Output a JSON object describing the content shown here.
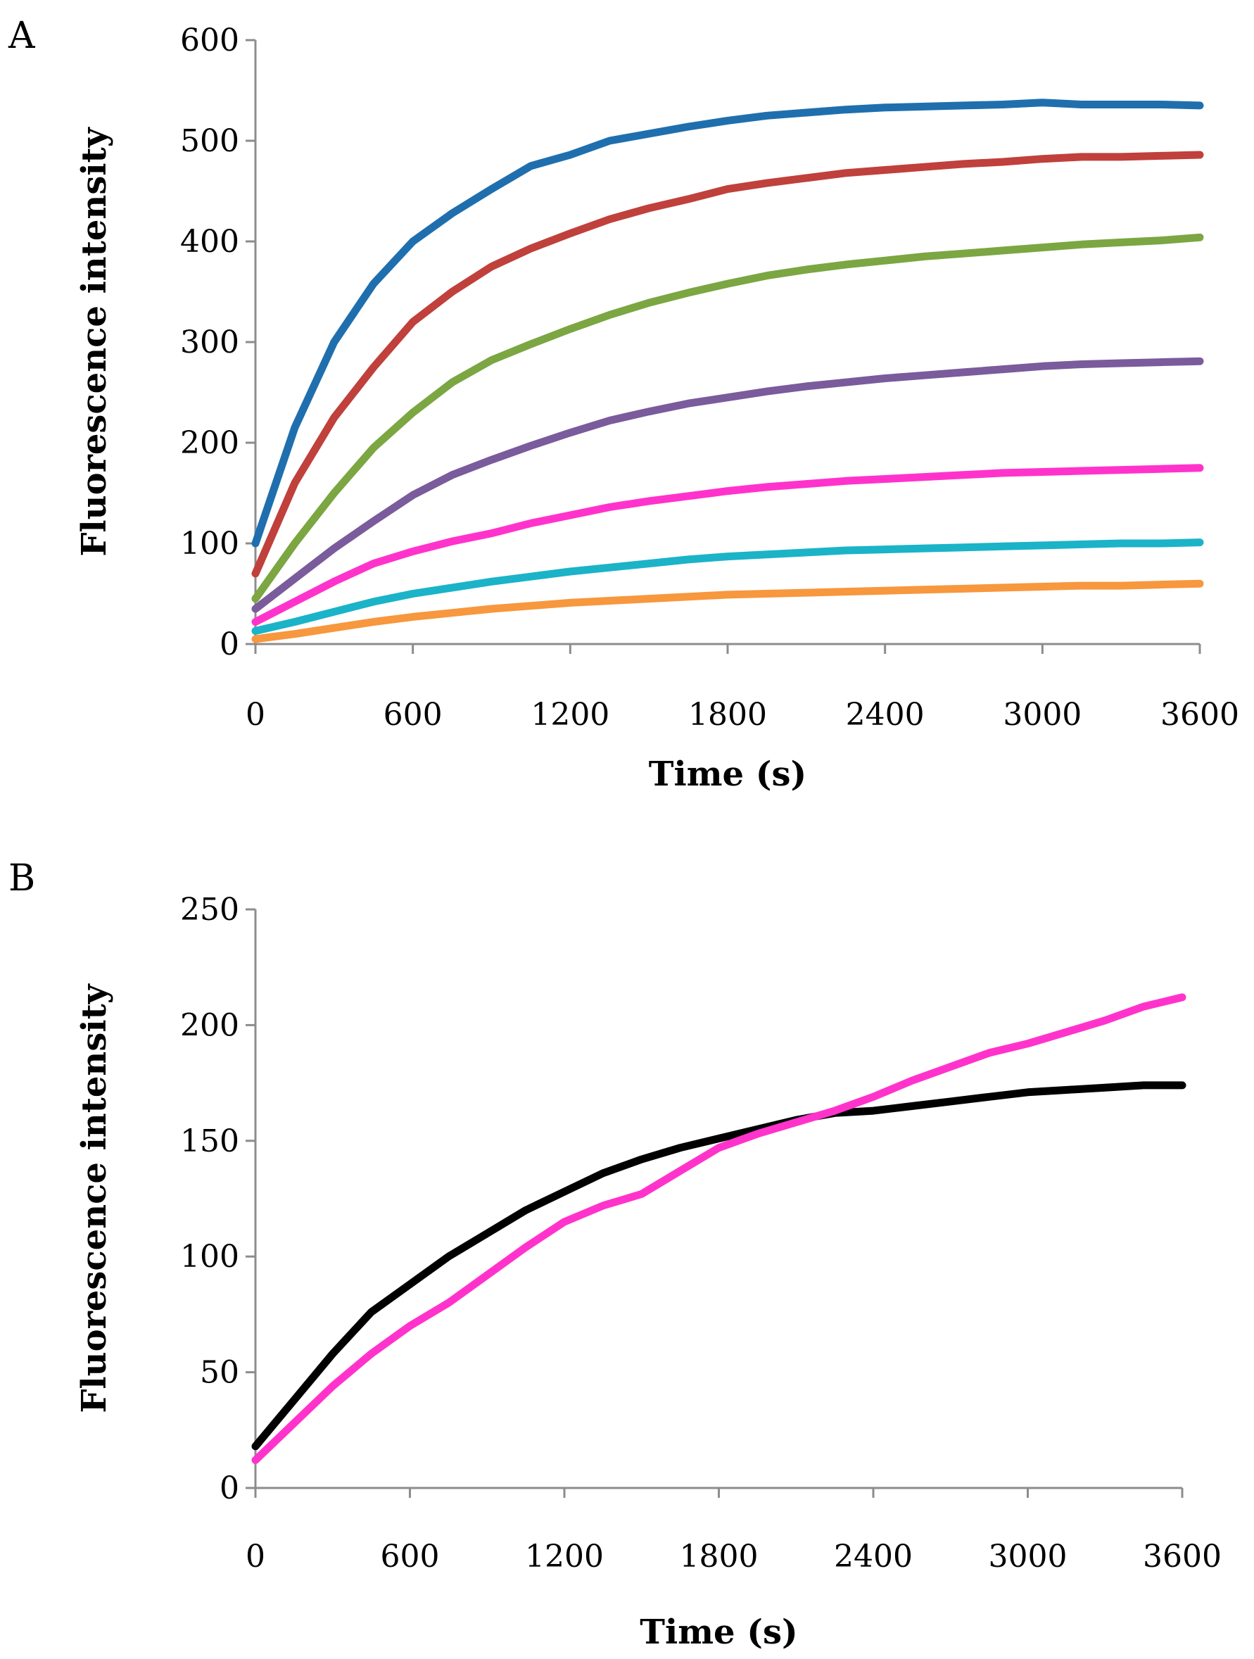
{
  "chart_data": [
    {
      "type": "line",
      "panel_label": "A",
      "xlabel": "Time (s)",
      "ylabel": "Fluorescence intensity",
      "xlim": [
        0,
        3600
      ],
      "ylim": [
        0,
        600
      ],
      "x_ticks": [
        0,
        600,
        1200,
        1800,
        2400,
        3000,
        3600
      ],
      "x_tick_labels": [
        "0",
        "600",
        "1200",
        "1800",
        "2400",
        "3000",
        "3600"
      ],
      "y_ticks": [
        0,
        100,
        200,
        300,
        400,
        500,
        600
      ],
      "y_tick_labels": [
        "0",
        "100",
        "200",
        "300",
        "400",
        "500",
        "600"
      ],
      "grid": false,
      "legend": "none",
      "x": [
        0,
        150,
        300,
        450,
        600,
        750,
        900,
        1050,
        1200,
        1350,
        1500,
        1650,
        1800,
        1950,
        2100,
        2250,
        2400,
        2550,
        2700,
        2850,
        3000,
        3150,
        3300,
        3450,
        3600
      ],
      "series": [
        {
          "name": "series-1",
          "color": "#1F6FAE",
          "values": [
            100,
            215,
            300,
            358,
            400,
            428,
            452,
            475,
            486,
            500,
            507,
            514,
            520,
            525,
            528,
            531,
            533,
            534,
            535,
            536,
            538,
            536,
            536,
            536,
            535
          ]
        },
        {
          "name": "series-2",
          "color": "#C0403C",
          "values": [
            70,
            160,
            225,
            275,
            320,
            350,
            375,
            393,
            408,
            422,
            433,
            442,
            452,
            458,
            463,
            468,
            471,
            474,
            477,
            479,
            482,
            484,
            484,
            485,
            486
          ]
        },
        {
          "name": "series-3",
          "color": "#7BA642",
          "values": [
            45,
            100,
            150,
            195,
            230,
            260,
            282,
            298,
            313,
            327,
            339,
            349,
            358,
            366,
            372,
            377,
            381,
            385,
            388,
            391,
            394,
            397,
            399,
            401,
            404
          ]
        },
        {
          "name": "series-4",
          "color": "#7A5B9C",
          "values": [
            35,
            65,
            95,
            122,
            148,
            168,
            183,
            197,
            210,
            222,
            231,
            239,
            245,
            251,
            256,
            260,
            264,
            267,
            270,
            273,
            276,
            278,
            279,
            280,
            281
          ]
        },
        {
          "name": "series-5",
          "color": "#FF33CC",
          "values": [
            22,
            42,
            62,
            80,
            92,
            102,
            110,
            120,
            128,
            136,
            142,
            147,
            152,
            156,
            159,
            162,
            164,
            166,
            168,
            170,
            171,
            172,
            173,
            174,
            175
          ]
        },
        {
          "name": "series-6",
          "color": "#1BB3C8",
          "values": [
            13,
            22,
            32,
            42,
            50,
            56,
            62,
            67,
            72,
            76,
            80,
            84,
            87,
            89,
            91,
            93,
            94,
            95,
            96,
            97,
            98,
            99,
            100,
            100,
            101
          ]
        },
        {
          "name": "series-7",
          "color": "#F7973E",
          "values": [
            5,
            10,
            16,
            22,
            27,
            31,
            35,
            38,
            41,
            43,
            45,
            47,
            49,
            50,
            51,
            52,
            53,
            54,
            55,
            56,
            57,
            58,
            58,
            59,
            60
          ]
        }
      ]
    },
    {
      "type": "line",
      "panel_label": "B",
      "xlabel": "Time (s)",
      "ylabel": "Fluorescence intensity",
      "xlim": [
        0,
        3600
      ],
      "ylim": [
        0,
        250
      ],
      "x_ticks": [
        0,
        600,
        1200,
        1800,
        2400,
        3000,
        3600
      ],
      "x_tick_labels": [
        "0",
        "600",
        "1200",
        "1800",
        "2400",
        "3000",
        "3600"
      ],
      "y_ticks": [
        0,
        50,
        100,
        150,
        200,
        250
      ],
      "y_tick_labels": [
        "0",
        "50",
        "100",
        "150",
        "200",
        "250"
      ],
      "grid": false,
      "legend": "none",
      "x": [
        0,
        150,
        300,
        450,
        600,
        750,
        900,
        1050,
        1200,
        1350,
        1500,
        1650,
        1800,
        1950,
        2100,
        2250,
        2400,
        2550,
        2700,
        2850,
        3000,
        3150,
        3300,
        3450,
        3600
      ],
      "series": [
        {
          "name": "series-black",
          "color": "#000000",
          "values": [
            18,
            38,
            58,
            76,
            88,
            100,
            110,
            120,
            128,
            136,
            142,
            147,
            151,
            155,
            159,
            162,
            163,
            165,
            167,
            169,
            171,
            172,
            173,
            174,
            174
          ]
        },
        {
          "name": "series-magenta",
          "color": "#FF33CC",
          "values": [
            12,
            28,
            44,
            58,
            70,
            80,
            92,
            104,
            115,
            122,
            127,
            137,
            147,
            153,
            158,
            163,
            169,
            176,
            182,
            188,
            192,
            197,
            202,
            208,
            212
          ]
        }
      ]
    }
  ]
}
